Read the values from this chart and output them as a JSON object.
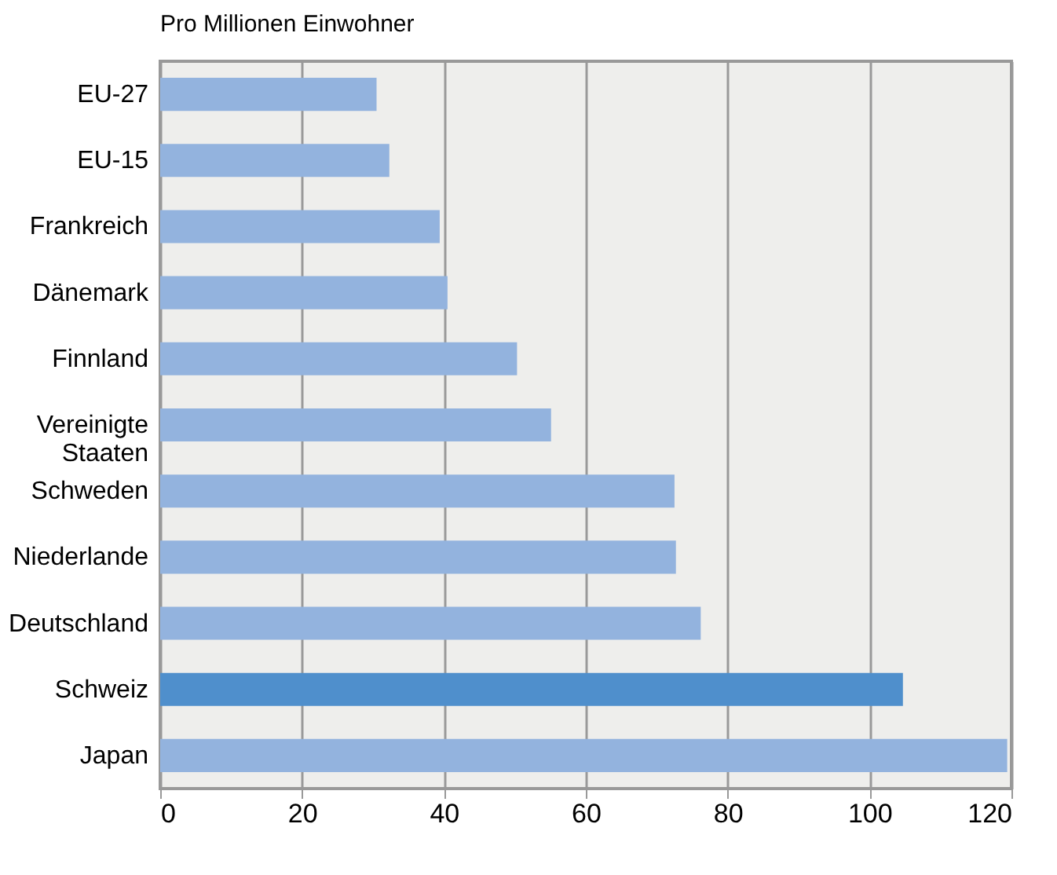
{
  "chart_data": {
    "type": "bar",
    "orientation": "horizontal",
    "title": "Pro Millionen Einwohner",
    "categories": [
      "EU-27",
      "EU-15",
      "Frankreich",
      "Dänemark",
      "Finnland",
      "Vereinigte Staaten",
      "Schweden",
      "Niederlande",
      "Deutschland",
      "Schweiz",
      "Japan"
    ],
    "values": [
      30.5,
      32.3,
      39.4,
      40.5,
      50.3,
      55.1,
      72.5,
      72.7,
      76.2,
      104.7,
      119.4
    ],
    "colors": [
      "#93b3de",
      "#93b3de",
      "#93b3de",
      "#93b3de",
      "#93b3de",
      "#93b3de",
      "#93b3de",
      "#93b3de",
      "#93b3de",
      "#4f8fcc",
      "#93b3de"
    ],
    "xlim": [
      0,
      120
    ],
    "xticks": [
      0,
      20,
      40,
      60,
      80,
      100,
      120
    ],
    "grid": "x"
  }
}
